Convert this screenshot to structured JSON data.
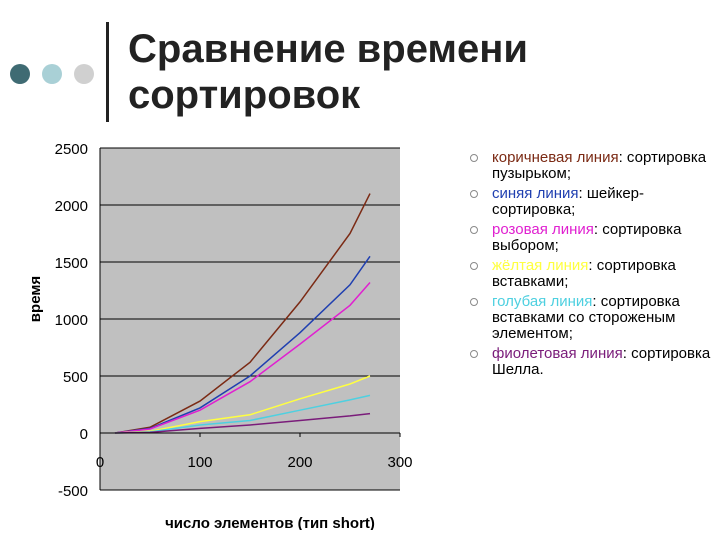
{
  "slide": {
    "title_line1": "Сравнение времени",
    "title_line2": "сортировок",
    "dot_colors": [
      "#3f6b73",
      "#a9d0d6",
      "#d0d0d0"
    ]
  },
  "legend": [
    {
      "colored": "коричневая линия",
      "rest": ": сортировка пузырьком;",
      "color": "#7b2a14"
    },
    {
      "colored": "синяя линия",
      "rest": ": шейкер-сортировка;",
      "color": "#1f3fb0"
    },
    {
      "colored": "розовая линия",
      "rest": ": сортировка выбором;",
      "color": "#e020d0"
    },
    {
      "colored": "жёлтая линия",
      "rest": ": сортировка вставками;",
      "color": "#ffff40"
    },
    {
      "colored": "голубая линия",
      "rest": ": сортировка вставками со стороженым элементом;",
      "color": "#4ed0e0"
    },
    {
      "colored": "фиолетовая линия",
      "rest": ": сортировка Шелла.",
      "color": "#7a1c7a"
    }
  ],
  "chart_data": {
    "type": "line",
    "title": "",
    "xlabel": "число элементов (тип short)",
    "ylabel": "время",
    "xlim": [
      0,
      300
    ],
    "ylim": [
      -500,
      2500
    ],
    "x_ticks": [
      "0",
      "100",
      "200",
      "300"
    ],
    "y_ticks": [
      "2500",
      "2000",
      "1500",
      "1000",
      "500",
      "0",
      "-500"
    ],
    "grid": "horizontal",
    "plot_bg": "#c0c0c0",
    "x": [
      15,
      50,
      100,
      150,
      200,
      250,
      270
    ],
    "series": [
      {
        "name": "коричневая линия",
        "color": "#7b2a14",
        "values": [
          0,
          50,
          280,
          620,
          1150,
          1750,
          2100
        ]
      },
      {
        "name": "синяя линия",
        "color": "#1f3fb0",
        "values": [
          0,
          40,
          220,
          500,
          880,
          1300,
          1550
        ]
      },
      {
        "name": "розовая линия",
        "color": "#e020d0",
        "values": [
          0,
          35,
          200,
          450,
          780,
          1120,
          1320
        ]
      },
      {
        "name": "жёлтая линия",
        "color": "#ffff40",
        "values": [
          0,
          15,
          100,
          160,
          300,
          430,
          500
        ]
      },
      {
        "name": "голубая линия",
        "color": "#4ed0e0",
        "values": [
          0,
          10,
          70,
          110,
          200,
          290,
          330
        ]
      },
      {
        "name": "фиолетовая линия",
        "color": "#7a1c7a",
        "values": [
          0,
          5,
          40,
          70,
          110,
          150,
          170
        ]
      }
    ]
  }
}
